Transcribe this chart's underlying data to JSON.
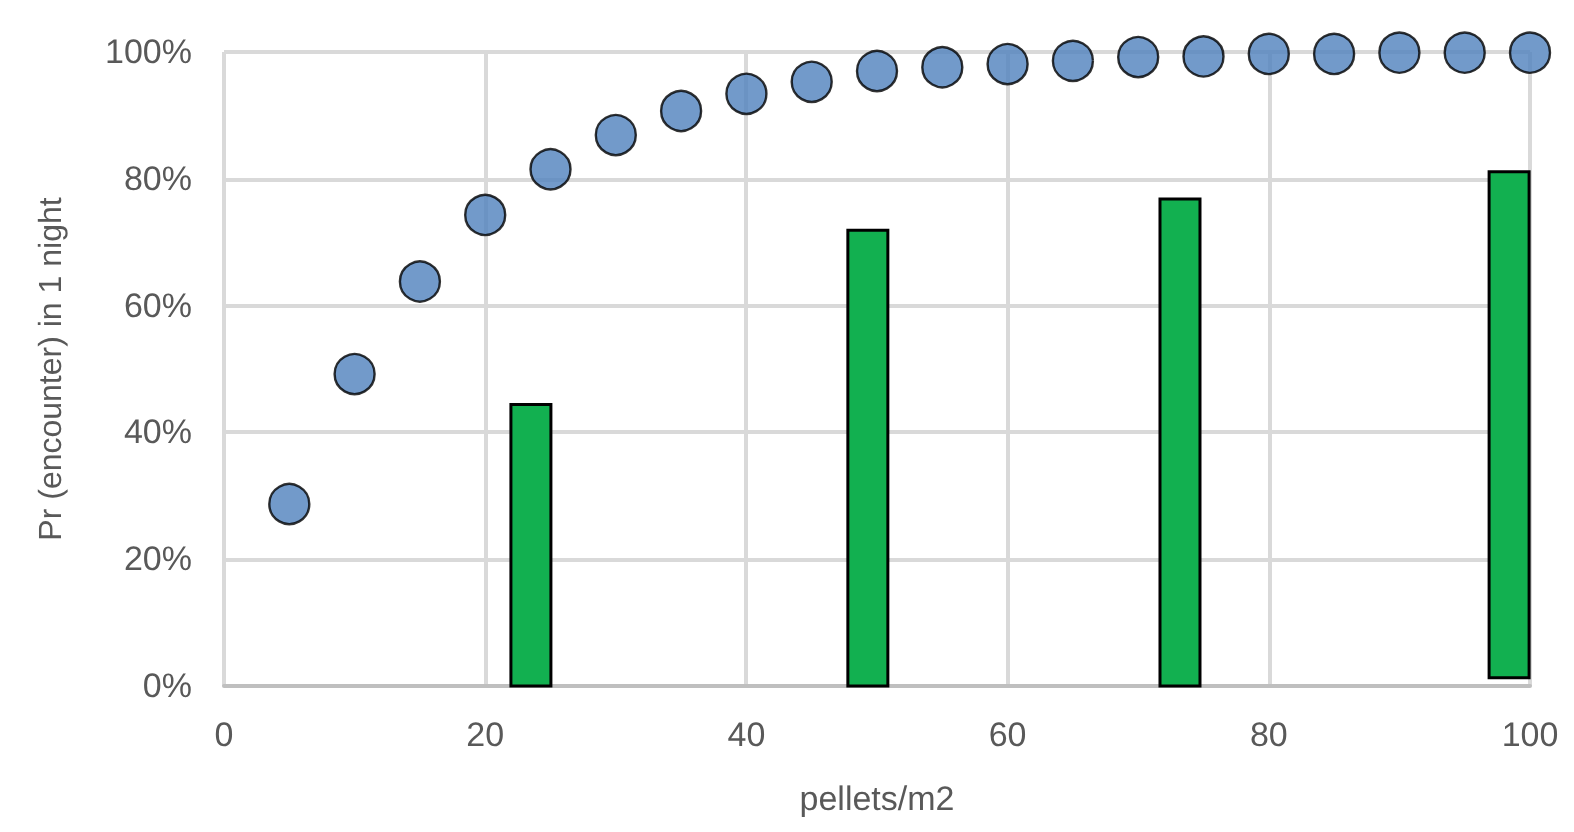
{
  "chart_data": {
    "type": "scatter",
    "xlabel": "pellets/m2",
    "ylabel": "Pr (encounter) in 1 night",
    "series": [
      {
        "color": "#4f81bd",
        "x": [
          5,
          10,
          15,
          20,
          25,
          30,
          35,
          40,
          45,
          50,
          55,
          60,
          65,
          70,
          75,
          80,
          85,
          90,
          95,
          100
        ],
        "values": [
          28.7,
          49.2,
          63.8,
          74.3,
          81.5,
          86.9,
          90.7,
          93.4,
          95.3,
          97,
          97.6,
          98.1,
          98.6,
          99.2,
          99.3,
          99.7,
          99.7,
          99.9,
          99.9,
          99.9
        ]
      },
      {
        "type": "bar",
        "color": "#12b050",
        "x": [
          23.5,
          49.3,
          73.2,
          98.4
        ],
        "base": [
          0,
          0,
          0,
          1.3
        ],
        "values": [
          44.4,
          71.9,
          76.8,
          79.8
        ]
      }
    ],
    "xlim": [
      0,
      100
    ],
    "xticks": [
      0,
      20,
      40,
      60,
      80,
      100
    ],
    "ylim": [
      0,
      100
    ],
    "yticks": [
      {
        "value": 0,
        "label": "0%"
      },
      {
        "value": 20,
        "label": "20%"
      },
      {
        "value": 40,
        "label": "40%"
      },
      {
        "value": 60,
        "label": "60%"
      },
      {
        "value": 80,
        "label": "80%"
      },
      {
        "value": 100,
        "label": "100%"
      }
    ],
    "grid": true,
    "marker": "circle"
  }
}
